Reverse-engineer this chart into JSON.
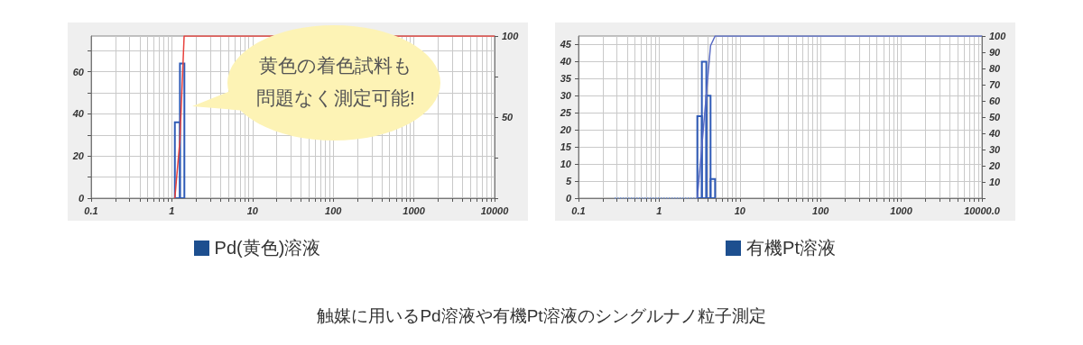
{
  "chart_data": [
    {
      "type": "histogram",
      "xlabel": "Pd(黄色)溶液",
      "log": "x",
      "grid": true,
      "xlim": [
        0.1,
        10000
      ],
      "ylim": [
        0,
        77
      ],
      "y2lim": [
        0,
        100
      ],
      "xticks": [
        0.1,
        {
          "value": 0.2,
          "label": null
        },
        {
          "value": 0.3,
          "label": null
        },
        {
          "value": 0.4,
          "label": null
        },
        {
          "value": 0.5,
          "label": null
        },
        {
          "value": 0.6,
          "label": null
        },
        {
          "value": 0.7,
          "label": null
        },
        {
          "value": 0.8,
          "label": null
        },
        {
          "value": 0.9,
          "label": null
        },
        1,
        {
          "value": 2,
          "label": null
        },
        {
          "value": 3,
          "label": null
        },
        {
          "value": 4,
          "label": null
        },
        {
          "value": 5,
          "label": null
        },
        {
          "value": 6,
          "label": null
        },
        {
          "value": 7,
          "label": null
        },
        {
          "value": 8,
          "label": null
        },
        {
          "value": 9,
          "label": null
        },
        10,
        {
          "value": 20,
          "label": null
        },
        {
          "value": 30,
          "label": null
        },
        {
          "value": 40,
          "label": null
        },
        {
          "value": 50,
          "label": null
        },
        {
          "value": 60,
          "label": null
        },
        {
          "value": 70,
          "label": null
        },
        {
          "value": 80,
          "label": null
        },
        {
          "value": 90,
          "label": null
        },
        100,
        {
          "value": 200,
          "label": null
        },
        {
          "value": 300,
          "label": null
        },
        {
          "value": 400,
          "label": null
        },
        {
          "value": 500,
          "label": null
        },
        {
          "value": 600,
          "label": null
        },
        {
          "value": 700,
          "label": null
        },
        {
          "value": 800,
          "label": null
        },
        {
          "value": 900,
          "label": null
        },
        1000,
        {
          "value": 2000,
          "label": null
        },
        {
          "value": 3000,
          "label": null
        },
        {
          "value": 4000,
          "label": null
        },
        {
          "value": 5000,
          "label": null
        },
        {
          "value": 6000,
          "label": null
        },
        {
          "value": 7000,
          "label": null
        },
        {
          "value": 8000,
          "label": null
        },
        {
          "value": 9000,
          "label": null
        },
        10000
      ],
      "yticks": [
        0,
        {
          "value": 10,
          "label": null
        },
        20,
        {
          "value": 30,
          "label": null
        },
        40,
        {
          "value": 50,
          "label": null
        },
        60,
        {
          "value": 70,
          "label": null
        }
      ],
      "y2ticks": [
        {
          "value": 0,
          "label": null
        },
        {
          "value": 25,
          "label": null
        },
        50,
        {
          "value": 75,
          "label": null
        },
        100
      ],
      "annotations": [
        "黄色の着色試料も問題なく測定可能!"
      ],
      "series": [
        {
          "color": "#2f5bb7",
          "bins": [
            1.09,
            1.26,
            1.43
          ],
          "values": [
            36,
            64
          ]
        },
        {
          "type": "line",
          "axis": "y2",
          "color": "#e8413c",
          "x": [
            1.09,
            1.26,
            1.42,
            10000
          ],
          "values": [
            0,
            36,
            100,
            100
          ]
        }
      ]
    },
    {
      "type": "histogram",
      "xlabel": "有機Pt溶液",
      "log": "x",
      "grid": true,
      "xlim": [
        0.1,
        10000
      ],
      "ylim": [
        0,
        47.5
      ],
      "y2lim": [
        0,
        100
      ],
      "xticks": [
        0.1,
        {
          "value": 0.2,
          "label": null
        },
        {
          "value": 0.3,
          "label": null
        },
        {
          "value": 0.4,
          "label": null
        },
        {
          "value": 0.5,
          "label": null
        },
        {
          "value": 0.6,
          "label": null
        },
        {
          "value": 0.7,
          "label": null
        },
        {
          "value": 0.8,
          "label": null
        },
        {
          "value": 0.9,
          "label": null
        },
        1,
        {
          "value": 2,
          "label": null
        },
        {
          "value": 3,
          "label": null
        },
        {
          "value": 4,
          "label": null
        },
        {
          "value": 5,
          "label": null
        },
        {
          "value": 6,
          "label": null
        },
        {
          "value": 7,
          "label": null
        },
        {
          "value": 8,
          "label": null
        },
        {
          "value": 9,
          "label": null
        },
        10,
        {
          "value": 20,
          "label": null
        },
        {
          "value": 30,
          "label": null
        },
        {
          "value": 40,
          "label": null
        },
        {
          "value": 50,
          "label": null
        },
        {
          "value": 60,
          "label": null
        },
        {
          "value": 70,
          "label": null
        },
        {
          "value": 80,
          "label": null
        },
        {
          "value": 90,
          "label": null
        },
        100,
        {
          "value": 200,
          "label": null
        },
        {
          "value": 300,
          "label": null
        },
        {
          "value": 400,
          "label": null
        },
        {
          "value": 500,
          "label": null
        },
        {
          "value": 600,
          "label": null
        },
        {
          "value": 700,
          "label": null
        },
        {
          "value": 800,
          "label": null
        },
        {
          "value": 900,
          "label": null
        },
        1000,
        {
          "value": 2000,
          "label": null
        },
        {
          "value": 3000,
          "label": null
        },
        {
          "value": 4000,
          "label": null
        },
        {
          "value": 5000,
          "label": null
        },
        {
          "value": 6000,
          "label": null
        },
        {
          "value": 7000,
          "label": null
        },
        {
          "value": 8000,
          "label": null
        },
        {
          "value": 9000,
          "label": null
        },
        {
          "value": 10000,
          "label": "10000.0"
        }
      ],
      "yticks": [
        0,
        5,
        10,
        15,
        20,
        25,
        30,
        35,
        40,
        45
      ],
      "y2ticks": [
        {
          "value": 0,
          "label": null
        },
        10,
        20,
        30,
        40,
        50,
        60,
        70,
        80,
        90,
        100
      ],
      "annotations": [
        "触媒に用いるPd溶液や有機Pt溶液のシングルナノ粒子測定"
      ],
      "series": [
        {
          "color": "#2f5bb7",
          "bins": [
            2.97,
            3.38,
            3.84,
            4.33,
            4.93
          ],
          "values": [
            24,
            40,
            30,
            5.6
          ]
        },
        {
          "type": "line",
          "line_style": "dotted",
          "color": "#6a8fd8",
          "x": [
            0.28,
            2.97
          ],
          "values": [
            0,
            0
          ]
        },
        {
          "type": "line",
          "axis": "y2",
          "color": "#5a6cc4",
          "x": [
            2.97,
            3.38,
            3.84,
            4.33,
            4.93,
            10000
          ],
          "values": [
            0,
            32,
            64,
            94,
            100,
            100
          ]
        }
      ]
    }
  ]
}
